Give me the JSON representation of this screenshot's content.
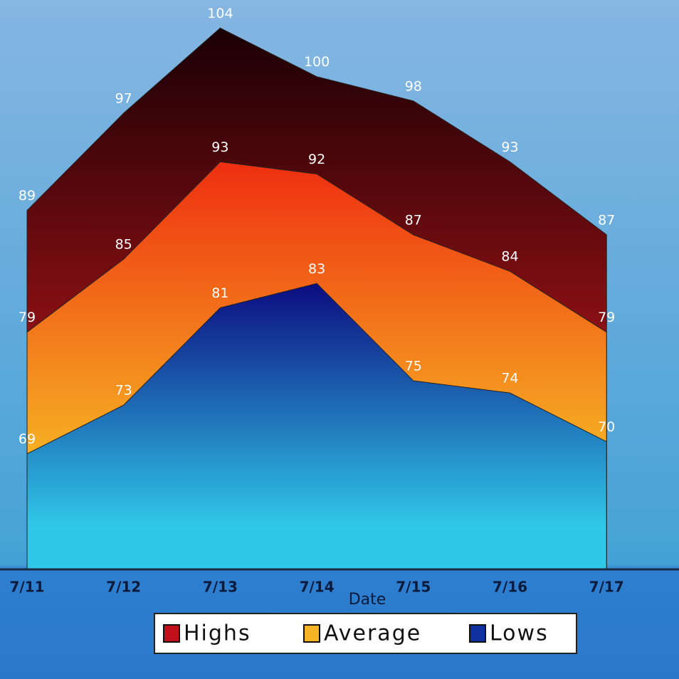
{
  "chart_data": {
    "type": "area",
    "x_label": "Date",
    "categories": [
      "7/11",
      "7/12",
      "7/13",
      "7/14",
      "7/15",
      "7/16",
      "7/17"
    ],
    "series": [
      {
        "name": "Highs",
        "color": "#c0101c",
        "gradient": [
          "#1a0004",
          "#d41a1e"
        ],
        "values": [
          89,
          97,
          104,
          100,
          98,
          93,
          87
        ]
      },
      {
        "name": "Average",
        "color": "#f6b424",
        "gradient": [
          "#ee2e10",
          "#f8d028"
        ],
        "values": [
          79,
          85,
          93,
          92,
          87,
          84,
          79
        ]
      },
      {
        "name": "Lows",
        "color": "#1030a0",
        "gradient": [
          "#0c0c80",
          "#30c8e8"
        ],
        "values": [
          69,
          73,
          81,
          83,
          75,
          74,
          70
        ]
      }
    ],
    "ylim": [
      59.5,
      106.3
    ]
  }
}
